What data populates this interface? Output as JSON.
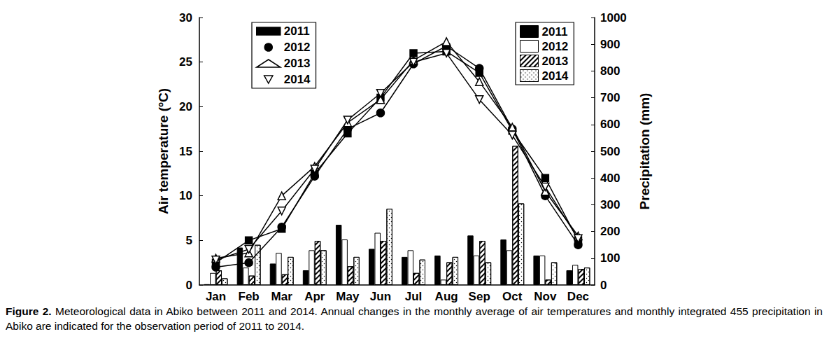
{
  "chart_data": {
    "type": "bar",
    "caption_label": "Figure 2.",
    "caption": "Meteorological data in Abiko between 2011 and 2014. Annual changes in the monthly average of air temperatures and monthly integrated 455 precipitation in Abiko are indicated for the observation period of 2011 to 2014.",
    "y_label": "Air temperature (ºC)",
    "y2_label": "Precipitation (mm)",
    "categories": [
      "Jan",
      "Feb",
      "Mar",
      "Apr",
      "May",
      "Jun",
      "Jul",
      "Aug",
      "Sep",
      "Oct",
      "Nov",
      "Dec"
    ],
    "ylim": [
      0,
      30
    ],
    "yticks": [
      0,
      5,
      10,
      15,
      20,
      25,
      30
    ],
    "y2lim": [
      0,
      1000
    ],
    "y2ticks": [
      0,
      100,
      200,
      300,
      400,
      500,
      600,
      700,
      800,
      900,
      1000
    ],
    "grid": false,
    "series": [
      {
        "name": "2011",
        "type": "line",
        "color": "#000000",
        "marker": "square",
        "values": [
          2.5,
          5.0,
          6.3,
          12.5,
          17.0,
          21.0,
          26.0,
          26.2,
          23.8,
          17.3,
          12.0,
          5.0
        ]
      },
      {
        "name": "2012",
        "type": "line",
        "color": "#000000",
        "marker": "circle",
        "values": [
          2.0,
          2.5,
          6.5,
          12.2,
          17.5,
          19.3,
          24.8,
          26.8,
          24.3,
          17.5,
          10.0,
          4.5
        ]
      },
      {
        "name": "2013",
        "type": "line",
        "color": "#000000",
        "marker": "triangle-open",
        "values": [
          3.0,
          3.6,
          10.0,
          13.3,
          18.2,
          20.8,
          25.2,
          27.3,
          22.8,
          17.7,
          10.5,
          5.5
        ]
      },
      {
        "name": "2014",
        "type": "line",
        "color": "#000000",
        "marker": "triangle-down-open",
        "values": [
          2.8,
          4.0,
          8.3,
          13.0,
          18.5,
          21.5,
          25.0,
          26.0,
          20.8,
          16.8,
          11.0,
          5.2
        ]
      },
      {
        "name": "2011",
        "type": "bar",
        "axis": "y2",
        "color": "#000000",
        "values": [
          3,
          140,
          80,
          55,
          225,
          135,
          105,
          110,
          185,
          170,
          110,
          55
        ]
      },
      {
        "name": "2012",
        "type": "bar",
        "axis": "y2",
        "color": "#ffffff",
        "values": [
          45,
          65,
          120,
          130,
          170,
          195,
          130,
          20,
          110,
          130,
          110,
          75
        ]
      },
      {
        "name": "2013",
        "type": "bar",
        "axis": "y2",
        "color": "#ffffff",
        "values": [
          55,
          35,
          40,
          165,
          70,
          165,
          45,
          85,
          165,
          520,
          20,
          60
        ]
      },
      {
        "name": "2014",
        "type": "bar",
        "axis": "y2",
        "color": "#ffffff",
        "values": [
          25,
          150,
          105,
          130,
          105,
          285,
          95,
          105,
          85,
          305,
          85,
          65
        ]
      }
    ]
  }
}
